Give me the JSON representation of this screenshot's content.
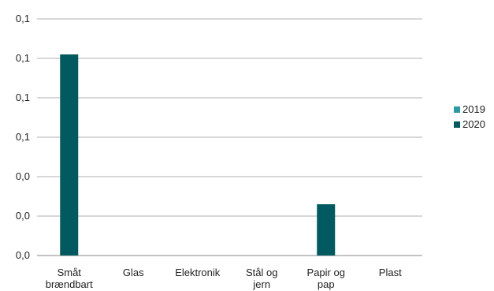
{
  "chart_data": {
    "type": "bar",
    "categories": [
      [
        "Småt",
        "brændbart"
      ],
      [
        "Glas"
      ],
      [
        "Elektronik"
      ],
      [
        "Stål og",
        "jern"
      ],
      [
        "Papir og",
        "pap"
      ],
      [
        "Plast"
      ]
    ],
    "y_tick_labels": [
      "0,0",
      "0,0",
      "0,1",
      "0,1",
      "0,1",
      "0,1"
    ],
    "ylim": [
      0,
      0.12
    ],
    "y_ticks": [
      0,
      0.02,
      0.04,
      0.06,
      0.08,
      0.1,
      0.12
    ],
    "tick_labels_bottom_up": [
      "0,0",
      "0,0",
      "0,0",
      "0,1",
      "0,1",
      "0,1",
      "0,1"
    ],
    "series": [
      {
        "name": "2019",
        "color": "#2a9aa5",
        "values": [
          0,
          0,
          0,
          0,
          0,
          0
        ]
      },
      {
        "name": "2020",
        "color": "#005a5f",
        "values": [
          0.102,
          0,
          0,
          0,
          0.026,
          0
        ]
      }
    ],
    "grid": true,
    "legend_position": "right"
  }
}
